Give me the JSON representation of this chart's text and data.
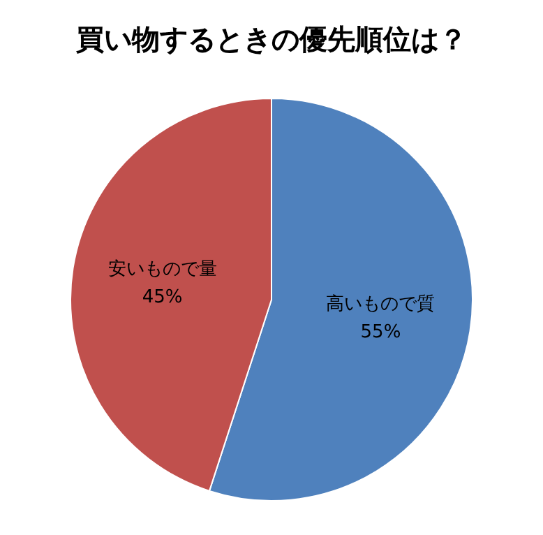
{
  "chart_data": {
    "type": "pie",
    "title": "買い物するときの優先順位は？",
    "categories": [
      "高いもので質",
      "安いもので量"
    ],
    "values": [
      55,
      45
    ],
    "colors": [
      "#4f81bd",
      "#c0504d"
    ],
    "value_labels": [
      "55%",
      "45%"
    ],
    "legend": false
  }
}
